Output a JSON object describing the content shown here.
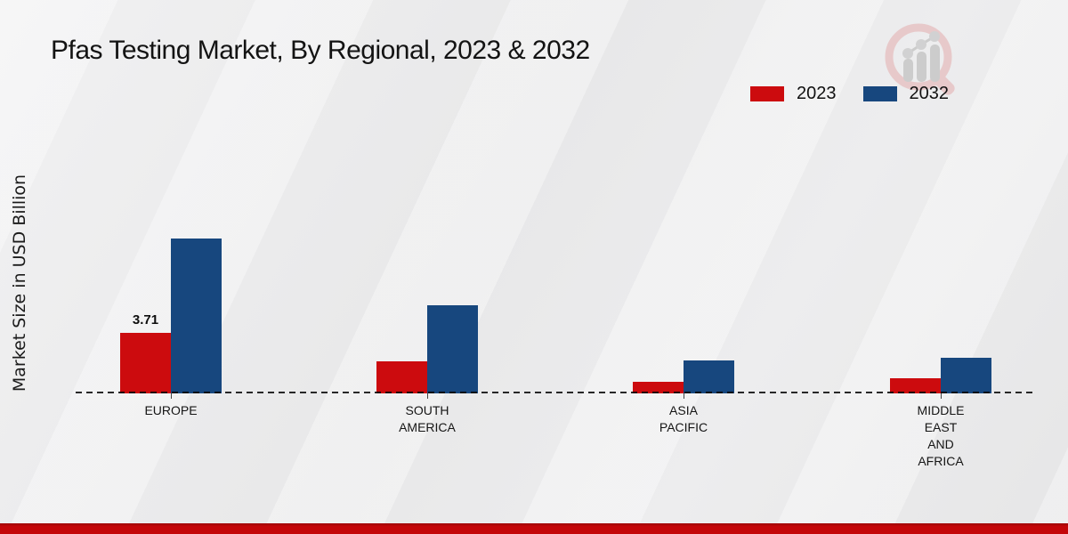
{
  "page": {
    "title": "Pfas Testing Market, By Regional, 2023 & 2032"
  },
  "chart_data": {
    "type": "bar",
    "title": "Pfas Testing Market, By Regional, 2023 & 2032",
    "xlabel": "",
    "ylabel": "Market Size in USD Billion",
    "categories": [
      "EUROPE",
      "SOUTH\nAMERICA",
      "ASIA\nPACIFIC",
      "MIDDLE\nEAST\nAND\nAFRICA"
    ],
    "series": [
      {
        "name": "2023",
        "color": "#cc0b0e",
        "values": [
          3.71,
          1.98,
          0.73,
          0.93
        ]
      },
      {
        "name": "2032",
        "color": "#17477e",
        "values": [
          9.49,
          5.38,
          2.02,
          2.17
        ]
      }
    ],
    "data_labels": [
      {
        "series_index": 0,
        "category_index": 0,
        "text": "3.71"
      }
    ],
    "legend_position": "top-right",
    "grid": false,
    "baseline_style": "dashed",
    "ylim": [
      0,
      10
    ]
  },
  "footer": {
    "accent_color": "#c40609"
  }
}
